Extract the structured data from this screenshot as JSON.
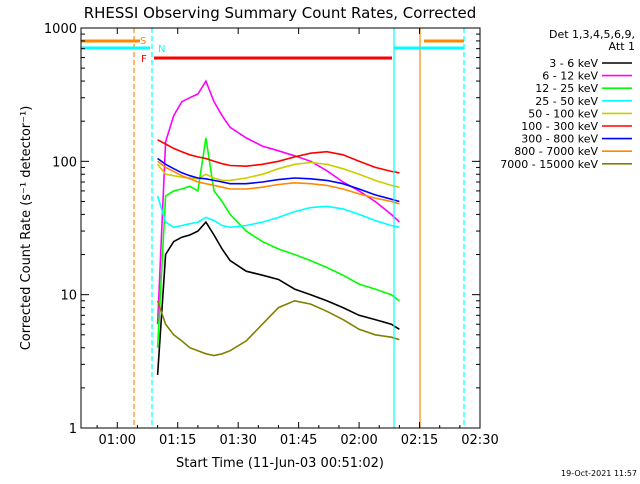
{
  "chart_data": {
    "type": "line",
    "title": "RHESSI Observing Summary Count Rates, Corrected",
    "xlabel": "Start Time (11-Jun-03 00:51:02)",
    "ylabel": "Corrected Count Rate (s⁻¹ detector⁻¹)",
    "yscale": "log",
    "ylim": [
      1,
      1000
    ],
    "xlim_minutes": [
      51,
      150
    ],
    "x_ticks": [
      {
        "label": "01:00",
        "minutes": 60
      },
      {
        "label": "01:15",
        "minutes": 75
      },
      {
        "label": "01:30",
        "minutes": 90
      },
      {
        "label": "01:45",
        "minutes": 105
      },
      {
        "label": "02:00",
        "minutes": 120
      },
      {
        "label": "02:15",
        "minutes": 135
      },
      {
        "label": "02:30",
        "minutes": 150
      }
    ],
    "y_ticks": [
      {
        "label": "1",
        "value": 1
      },
      {
        "label": "10",
        "value": 10
      },
      {
        "label": "100",
        "value": 100
      },
      {
        "label": "1000",
        "value": 1000
      }
    ],
    "legend_header": [
      "Det 1,3,4,5,6,9,",
      "Att 1"
    ],
    "legend_placement": "right",
    "series": [
      {
        "name": "3 - 6 keV",
        "color": "#000000",
        "x": [
          70,
          72,
          74,
          76,
          78,
          80,
          82,
          84,
          86,
          88,
          92,
          96,
          100,
          104,
          108,
          112,
          116,
          120,
          124,
          128,
          130
        ],
        "y": [
          2.5,
          20,
          25,
          27,
          28,
          30,
          35,
          28,
          22,
          18,
          15,
          14,
          13,
          11,
          10,
          9,
          8,
          7,
          6.5,
          6,
          5.5
        ]
      },
      {
        "name": "6 - 12 keV",
        "color": "#ff00ff",
        "x": [
          70,
          72,
          74,
          76,
          78,
          80,
          82,
          84,
          86,
          88,
          92,
          96,
          100,
          104,
          108,
          112,
          116,
          120,
          124,
          128,
          130
        ],
        "y": [
          6,
          140,
          220,
          280,
          300,
          320,
          400,
          280,
          220,
          180,
          150,
          130,
          120,
          110,
          100,
          85,
          70,
          60,
          50,
          40,
          35
        ]
      },
      {
        "name": "12 - 25 keV",
        "color": "#00ff00",
        "x": [
          70,
          72,
          74,
          76,
          78,
          80,
          82,
          84,
          86,
          88,
          92,
          96,
          100,
          104,
          108,
          112,
          116,
          120,
          124,
          128,
          130
        ],
        "y": [
          4,
          55,
          60,
          62,
          65,
          60,
          150,
          60,
          50,
          40,
          30,
          25,
          22,
          20,
          18,
          16,
          14,
          12,
          11,
          10,
          9
        ]
      },
      {
        "name": "25 - 50 keV",
        "color": "#00ffff",
        "x": [
          70,
          72,
          74,
          76,
          78,
          80,
          82,
          84,
          86,
          88,
          92,
          96,
          100,
          104,
          108,
          112,
          116,
          120,
          124,
          128,
          130
        ],
        "y": [
          55,
          35,
          32,
          33,
          34,
          35,
          38,
          36,
          33,
          32,
          33,
          35,
          38,
          42,
          45,
          46,
          44,
          40,
          36,
          33,
          32
        ]
      },
      {
        "name": "50 - 100 keV",
        "color": "#cccc00",
        "x": [
          70,
          72,
          74,
          76,
          78,
          80,
          82,
          84,
          86,
          88,
          92,
          96,
          100,
          104,
          108,
          112,
          116,
          120,
          124,
          128,
          130
        ],
        "y": [
          95,
          80,
          78,
          76,
          75,
          74,
          80,
          75,
          72,
          72,
          75,
          80,
          88,
          95,
          98,
          95,
          88,
          80,
          72,
          66,
          64
        ]
      },
      {
        "name": "100 - 300 keV",
        "color": "#ff0000",
        "x": [
          70,
          72,
          74,
          76,
          78,
          80,
          82,
          84,
          86,
          88,
          92,
          96,
          100,
          104,
          108,
          112,
          116,
          120,
          124,
          128,
          130
        ],
        "y": [
          145,
          135,
          125,
          118,
          112,
          108,
          105,
          100,
          96,
          93,
          92,
          95,
          100,
          108,
          115,
          118,
          112,
          100,
          90,
          84,
          82
        ]
      },
      {
        "name": "300 - 800 keV",
        "color": "#0000ff",
        "x": [
          70,
          72,
          74,
          76,
          78,
          80,
          82,
          84,
          86,
          88,
          92,
          96,
          100,
          104,
          108,
          112,
          116,
          120,
          124,
          128,
          130
        ],
        "y": [
          105,
          95,
          88,
          82,
          78,
          75,
          74,
          72,
          70,
          68,
          68,
          70,
          73,
          75,
          74,
          72,
          68,
          62,
          56,
          52,
          50
        ]
      },
      {
        "name": "800 - 7000 keV",
        "color": "#ff8800",
        "x": [
          70,
          72,
          74,
          76,
          78,
          80,
          82,
          84,
          86,
          88,
          92,
          96,
          100,
          104,
          108,
          112,
          116,
          120,
          124,
          128,
          130
        ],
        "y": [
          100,
          90,
          84,
          78,
          74,
          70,
          68,
          66,
          64,
          62,
          62,
          64,
          67,
          69,
          68,
          66,
          62,
          57,
          53,
          50,
          48
        ]
      },
      {
        "name": "7000 - 15000 keV",
        "color": "#808000",
        "x": [
          70,
          72,
          74,
          76,
          78,
          80,
          82,
          84,
          86,
          88,
          92,
          96,
          100,
          104,
          108,
          112,
          116,
          120,
          124,
          128,
          130
        ],
        "y": [
          9,
          6,
          5,
          4.5,
          4,
          3.8,
          3.6,
          3.5,
          3.6,
          3.8,
          4.5,
          6,
          8,
          9,
          8.5,
          7.5,
          6.5,
          5.5,
          5,
          4.8,
          4.6
        ]
      }
    ],
    "markers": [
      {
        "label": "S",
        "color": "#ff8800"
      },
      {
        "label": "N",
        "color": "#00ffff"
      },
      {
        "label": "F",
        "color": "#ff0000"
      }
    ],
    "timestamp": "19-Oct-2021 11:57"
  }
}
